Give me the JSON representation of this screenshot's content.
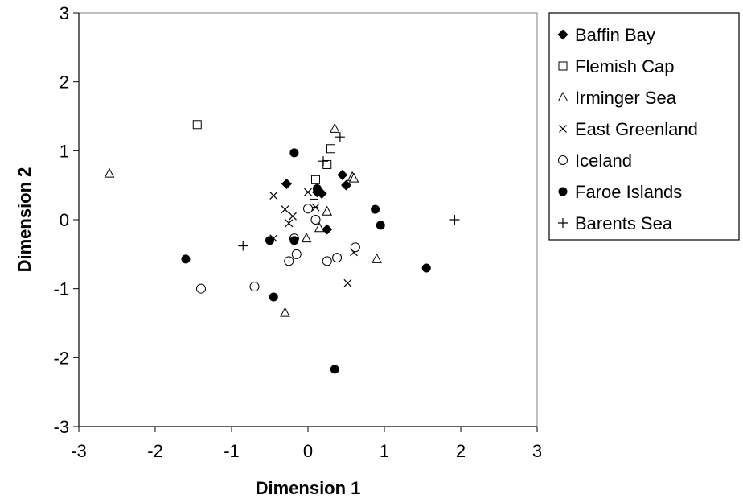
{
  "chart_data": {
    "type": "scatter",
    "title": "",
    "xlabel": "Dimension 1",
    "ylabel": "Dimension 2",
    "xlim": [
      -3,
      3
    ],
    "ylim": [
      -3,
      3
    ],
    "xticks": [
      -3,
      -2,
      -1,
      0,
      1,
      2,
      3
    ],
    "yticks": [
      -3,
      -2,
      -1,
      0,
      1,
      2,
      3
    ],
    "grid": false,
    "legend": "right",
    "series": [
      {
        "name": "Baffin Bay",
        "marker": "filled-diamond",
        "points": [
          [
            -0.28,
            0.52
          ],
          [
            0.18,
            0.38
          ],
          [
            0.45,
            0.65
          ],
          [
            0.5,
            0.5
          ],
          [
            0.25,
            -0.14
          ],
          [
            0.12,
            0.4
          ]
        ]
      },
      {
        "name": "Flemish Cap",
        "marker": "open-square",
        "points": [
          [
            -1.45,
            1.38
          ],
          [
            0.3,
            1.03
          ],
          [
            0.25,
            0.8
          ],
          [
            0.1,
            0.58
          ],
          [
            0.08,
            0.24
          ]
        ]
      },
      {
        "name": "Irminger Sea",
        "marker": "open-triangle",
        "points": [
          [
            -2.6,
            0.67
          ],
          [
            0.35,
            1.32
          ],
          [
            0.58,
            0.62
          ],
          [
            0.6,
            0.6
          ],
          [
            0.25,
            0.12
          ],
          [
            0.15,
            -0.12
          ],
          [
            -0.02,
            -0.27
          ],
          [
            0.9,
            -0.57
          ],
          [
            -0.3,
            -1.35
          ]
        ]
      },
      {
        "name": "East Greenland",
        "marker": "x",
        "points": [
          [
            -0.45,
            0.35
          ],
          [
            -0.3,
            0.15
          ],
          [
            0.0,
            0.4
          ],
          [
            -0.25,
            -0.05
          ],
          [
            -0.2,
            0.05
          ],
          [
            0.1,
            0.18
          ],
          [
            -0.45,
            -0.27
          ],
          [
            0.6,
            -0.47
          ],
          [
            0.52,
            -0.92
          ]
        ]
      },
      {
        "name": "Iceland",
        "marker": "open-circle",
        "points": [
          [
            -1.4,
            -1.0
          ],
          [
            -0.7,
            -0.97
          ],
          [
            -0.25,
            -0.6
          ],
          [
            -0.15,
            -0.5
          ],
          [
            0.25,
            -0.6
          ],
          [
            0.38,
            -0.55
          ],
          [
            0.62,
            -0.4
          ],
          [
            -0.18,
            -0.27
          ],
          [
            0.1,
            0.0
          ],
          [
            0.0,
            0.16
          ]
        ]
      },
      {
        "name": "Faroe Islands",
        "marker": "filled-circle",
        "points": [
          [
            -0.18,
            0.97
          ],
          [
            0.12,
            0.45
          ],
          [
            -0.5,
            -0.3
          ],
          [
            -0.18,
            -0.3
          ],
          [
            -1.6,
            -0.57
          ],
          [
            -0.45,
            -1.12
          ],
          [
            0.88,
            0.15
          ],
          [
            0.95,
            -0.08
          ],
          [
            1.55,
            -0.7
          ],
          [
            0.35,
            -2.17
          ]
        ]
      },
      {
        "name": "Barents Sea",
        "marker": "plus",
        "points": [
          [
            0.42,
            1.2
          ],
          [
            0.2,
            0.85
          ],
          [
            -0.85,
            -0.38
          ],
          [
            1.92,
            0.0
          ]
        ]
      }
    ]
  }
}
